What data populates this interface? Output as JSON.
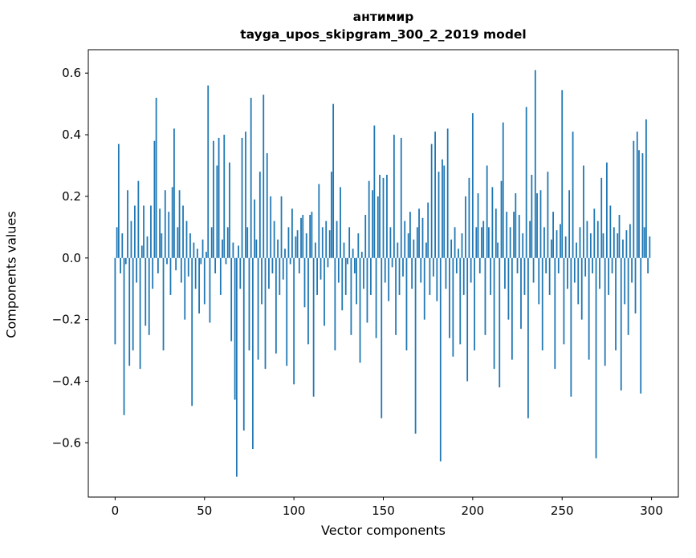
{
  "figure": {
    "title_line1": "антимир",
    "title_line2": "tayga_upos_skipgram_300_2_2019 model",
    "xlabel": "Vector components",
    "ylabel": "Components values"
  },
  "chart_data": {
    "type": "bar",
    "title": "антимир — tayga_upos_skipgram_300_2_2019 model",
    "xlabel": "Vector components",
    "ylabel": "Components values",
    "legend": "none",
    "grid": false,
    "bar_color": "#1f77b4",
    "axis_color": "#000000",
    "xlim": [
      -15,
      315
    ],
    "ylim": [
      -0.776,
      0.676
    ],
    "x_ticks": [
      0,
      50,
      100,
      150,
      200,
      250,
      300
    ],
    "y_ticks": [
      -0.6,
      -0.4,
      -0.2,
      0.0,
      0.2,
      0.4,
      0.6
    ],
    "n_components": 300,
    "values": [
      -0.28,
      0.1,
      0.37,
      -0.05,
      0.08,
      -0.51,
      -0.02,
      0.22,
      -0.35,
      0.12,
      -0.3,
      0.17,
      -0.08,
      0.25,
      -0.36,
      0.04,
      0.17,
      -0.22,
      0.07,
      -0.25,
      0.17,
      -0.1,
      0.38,
      0.52,
      -0.05,
      0.16,
      0.08,
      -0.3,
      0.22,
      -0.02,
      0.15,
      -0.12,
      0.23,
      0.42,
      -0.04,
      0.1,
      0.22,
      -0.08,
      0.17,
      -0.2,
      0.12,
      -0.06,
      0.08,
      -0.48,
      0.05,
      -0.1,
      0.03,
      -0.18,
      -0.02,
      0.06,
      -0.15,
      0.02,
      0.56,
      -0.21,
      0.1,
      0.38,
      -0.05,
      0.3,
      0.39,
      -0.12,
      0.06,
      0.4,
      -0.02,
      0.1,
      0.31,
      -0.27,
      0.05,
      -0.46,
      -0.71,
      0.04,
      -0.1,
      0.39,
      -0.56,
      0.41,
      0.1,
      -0.3,
      0.52,
      -0.62,
      0.19,
      0.06,
      -0.33,
      0.28,
      -0.15,
      0.53,
      -0.36,
      0.34,
      -0.1,
      0.2,
      -0.05,
      0.12,
      -0.31,
      0.06,
      -0.12,
      0.2,
      -0.07,
      0.03,
      -0.35,
      0.1,
      -0.02,
      0.16,
      -0.41,
      0.07,
      0.09,
      -0.05,
      0.13,
      0.14,
      -0.16,
      0.08,
      -0.28,
      0.14,
      0.15,
      -0.45,
      0.05,
      -0.12,
      0.24,
      -0.07,
      0.1,
      -0.22,
      0.12,
      -0.03,
      0.09,
      0.28,
      0.5,
      -0.3,
      0.12,
      -0.08,
      0.23,
      -0.17,
      0.05,
      -0.12,
      -0.02,
      0.1,
      -0.25,
      0.03,
      -0.05,
      -0.15,
      0.08,
      -0.34,
      0.02,
      -0.1,
      0.14,
      -0.21,
      0.25,
      -0.12,
      0.22,
      0.43,
      -0.26,
      0.2,
      0.27,
      -0.52,
      0.26,
      -0.08,
      0.27,
      -0.14,
      0.1,
      -0.03,
      0.4,
      -0.25,
      0.05,
      -0.12,
      0.39,
      -0.06,
      0.12,
      -0.3,
      0.08,
      0.15,
      -0.1,
      0.06,
      -0.57,
      0.1,
      0.16,
      -0.08,
      0.13,
      -0.2,
      0.05,
      0.18,
      -0.12,
      0.37,
      -0.06,
      0.41,
      -0.14,
      0.28,
      -0.66,
      0.32,
      0.3,
      -0.1,
      0.42,
      -0.26,
      0.06,
      -0.32,
      0.1,
      -0.05,
      0.03,
      -0.28,
      0.08,
      -0.12,
      0.2,
      -0.4,
      0.26,
      -0.08,
      0.47,
      -0.3,
      0.1,
      0.21,
      -0.05,
      0.1,
      0.12,
      -0.25,
      0.3,
      0.1,
      -0.12,
      0.23,
      -0.36,
      0.16,
      0.05,
      -0.42,
      0.25,
      0.44,
      -0.1,
      0.15,
      -0.2,
      0.1,
      -0.33,
      0.15,
      0.21,
      -0.05,
      0.14,
      -0.23,
      0.08,
      -0.12,
      0.49,
      -0.52,
      0.12,
      0.27,
      -0.08,
      0.61,
      0.21,
      -0.15,
      0.22,
      -0.3,
      0.1,
      -0.05,
      0.28,
      -0.12,
      0.06,
      0.15,
      -0.36,
      0.09,
      -0.05,
      0.11,
      0.545,
      -0.28,
      0.07,
      -0.1,
      0.22,
      -0.45,
      0.41,
      -0.08,
      0.05,
      -0.15,
      0.1,
      -0.2,
      0.3,
      -0.06,
      0.12,
      -0.33,
      0.08,
      -0.05,
      0.16,
      -0.65,
      0.12,
      -0.1,
      0.26,
      0.08,
      -0.35,
      0.31,
      -0.12,
      0.17,
      -0.05,
      0.1,
      -0.3,
      0.08,
      0.14,
      -0.43,
      0.06,
      -0.15,
      0.09,
      -0.25,
      0.11,
      -0.08,
      0.38,
      -0.18,
      0.41,
      0.35,
      -0.44,
      0.34,
      0.1,
      0.45,
      -0.05,
      0.07
    ]
  }
}
